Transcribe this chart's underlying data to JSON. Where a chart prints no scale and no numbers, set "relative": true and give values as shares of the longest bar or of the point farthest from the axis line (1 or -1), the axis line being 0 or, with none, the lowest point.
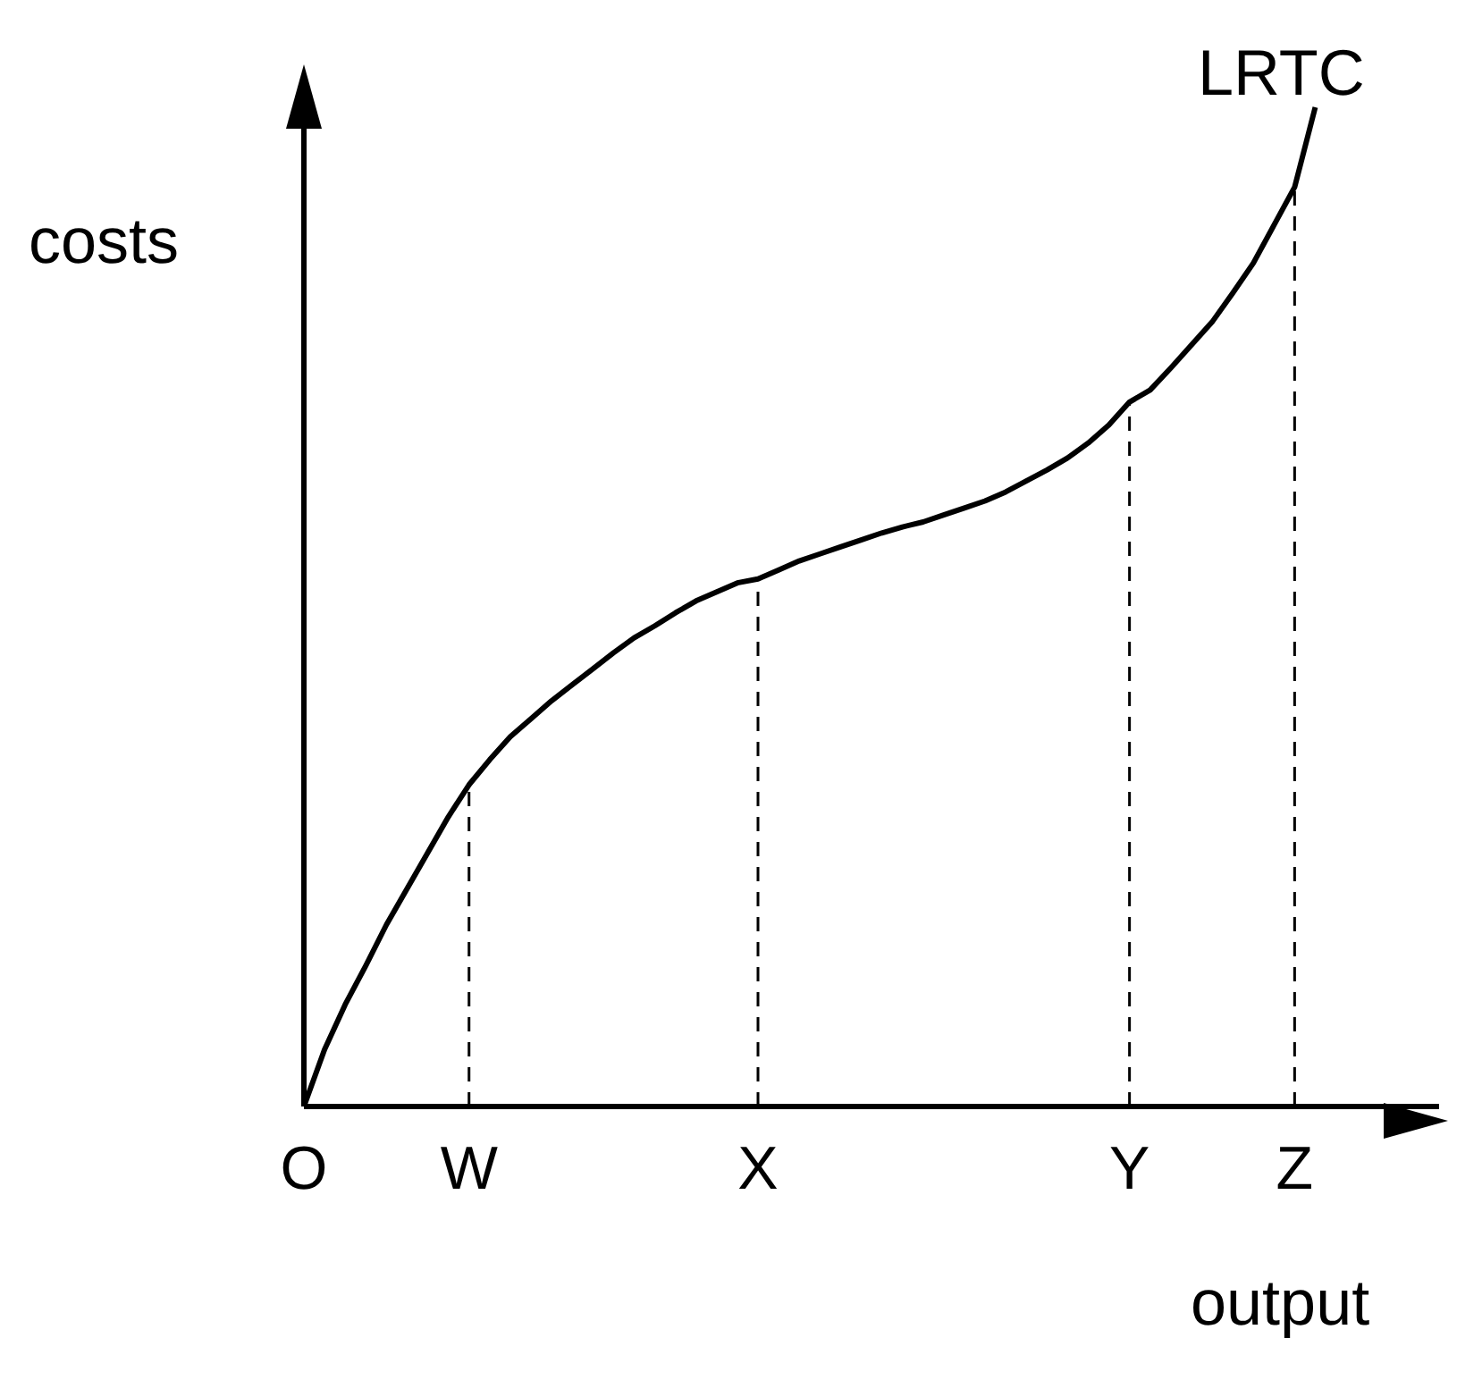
{
  "chart_data": {
    "type": "line",
    "relative": true,
    "xlabel": "output",
    "ylabel": "costs",
    "categories": [
      "O",
      null,
      null,
      null,
      null,
      null,
      null,
      null,
      "W",
      null,
      null,
      null,
      null,
      null,
      null,
      null,
      null,
      null,
      null,
      null,
      null,
      null,
      "X",
      null,
      null,
      null,
      null,
      null,
      null,
      null,
      null,
      null,
      null,
      null,
      null,
      null,
      null,
      null,
      null,
      null,
      "Y",
      null,
      null,
      null,
      null,
      null,
      null,
      null,
      "Z",
      null,
      null,
      null,
      null,
      null,
      null,
      null
    ],
    "grid": false,
    "legend": false,
    "marker": "none",
    "line_style": "solid",
    "series": [
      {
        "name": "LRTC",
        "color": "#000000",
        "values": [
          0,
          0.057,
          0.102,
          0.141,
          0.182,
          0.218,
          0.254,
          0.29,
          0.322,
          0.347,
          0.37,
          0.388,
          0.406,
          0.422,
          0.438,
          0.454,
          0.469,
          0.481,
          0.494,
          0.506,
          0.515,
          0.524,
          0.528,
          0.537,
          0.546,
          0.553,
          0.56,
          0.567,
          0.574,
          0.58,
          0.585,
          0.592,
          0.599,
          0.606,
          0.615,
          0.626,
          0.637,
          0.649,
          0.664,
          0.682,
          0.705,
          0.717,
          0.739,
          0.762,
          0.785,
          0.814,
          0.844,
          0.882,
          0.92,
          1,
          null,
          null,
          null,
          null,
          null,
          null
        ]
      }
    ],
    "ref_lines": [
      {
        "axis": "x",
        "value": "W",
        "color": "#000000",
        "line_style": "dashed"
      },
      {
        "axis": "x",
        "value": "X",
        "color": "#000000",
        "line_style": "dashed"
      },
      {
        "axis": "x",
        "value": "Y",
        "color": "#000000",
        "line_style": "dashed"
      },
      {
        "axis": "x",
        "value": "Z",
        "color": "#000000",
        "line_style": "dashed"
      }
    ]
  }
}
